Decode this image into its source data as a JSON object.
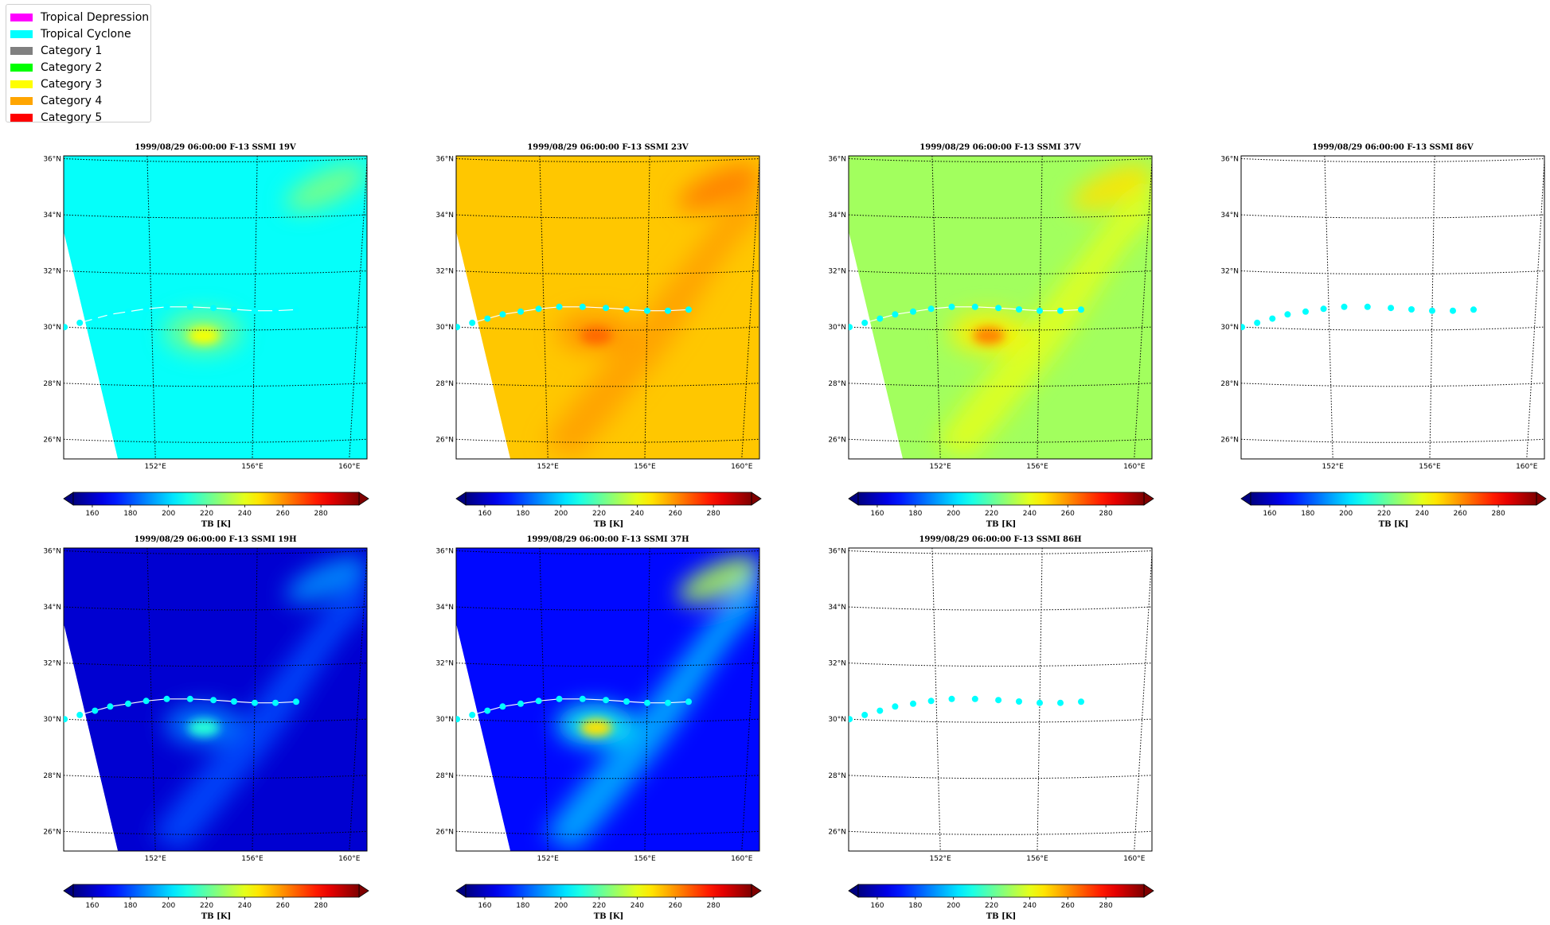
{
  "legend": {
    "items": [
      {
        "label": "Tropical Depression",
        "color": "#ff00ff"
      },
      {
        "label": "Tropical Cyclone",
        "color": "#00ffff"
      },
      {
        "label": "Category 1",
        "color": "#808080"
      },
      {
        "label": "Category 2",
        "color": "#00ff00"
      },
      {
        "label": "Category 3",
        "color": "#ffff00"
      },
      {
        "label": "Category 4",
        "color": "#ffa500"
      },
      {
        "label": "Category 5",
        "color": "#ff0000"
      }
    ]
  },
  "chart_data": {
    "type": "heatmap",
    "colormap": "jet",
    "colorbar": {
      "label": "TB [K]",
      "ticks": [
        160,
        180,
        200,
        220,
        240,
        260,
        280
      ],
      "range": [
        150,
        300
      ],
      "extend": "both"
    },
    "lat_ticks": [
      "36°N",
      "34°N",
      "32°N",
      "30°N",
      "28°N",
      "26°N"
    ],
    "lon_ticks": [
      "152°E",
      "156°E",
      "160°E"
    ],
    "grid": true,
    "track": {
      "color": "#00ffff",
      "lon": [
        148.1,
        148.6,
        149.2,
        149.8,
        150.4,
        151.1,
        151.8,
        152.6,
        153.5,
        154.4,
        155.2,
        156.0,
        156.8,
        157.6
      ],
      "lat": [
        29.85,
        30.0,
        30.15,
        30.3,
        30.45,
        30.55,
        30.65,
        30.72,
        30.72,
        30.68,
        30.63,
        30.58,
        30.58,
        30.62
      ]
    },
    "panels": [
      {
        "title": "1999/08/29 06:00:00  F-13 SSMI 19V",
        "base_tb": 207,
        "blob_tb": 243,
        "band_tb": 0,
        "ne_tb": 225,
        "has_data": true,
        "track_line": true
      },
      {
        "title": "1999/08/29 06:00:00  F-13 SSMI 23V",
        "base_tb": 252,
        "blob_tb": 266,
        "band_tb": 258,
        "ne_tb": 263,
        "has_data": true,
        "track_line": true
      },
      {
        "title": "1999/08/29 06:00:00  F-13 SSMI 37V",
        "base_tb": 230,
        "blob_tb": 262,
        "band_tb": 240,
        "ne_tb": 248,
        "has_data": true,
        "track_line": true
      },
      {
        "title": "1999/08/29 06:00:00  F-13 SSMI 86V",
        "base_tb": 0,
        "blob_tb": 0,
        "band_tb": 0,
        "ne_tb": 0,
        "has_data": false,
        "track_line": false
      },
      {
        "title": "1999/08/29 06:00:00  F-13 SSMI 19H",
        "base_tb": 162,
        "blob_tb": 212,
        "band_tb": 180,
        "ne_tb": 190,
        "has_data": true,
        "track_line": true
      },
      {
        "title": "1999/08/29 06:00:00  F-13 SSMI 37H",
        "base_tb": 170,
        "blob_tb": 248,
        "band_tb": 196,
        "ne_tb": 232,
        "has_data": true,
        "track_line": true
      },
      {
        "title": "1999/08/29 06:00:00  F-13 SSMI 86H",
        "base_tb": 0,
        "blob_tb": 0,
        "band_tb": 0,
        "ne_tb": 0,
        "has_data": false,
        "track_line": false
      }
    ]
  }
}
